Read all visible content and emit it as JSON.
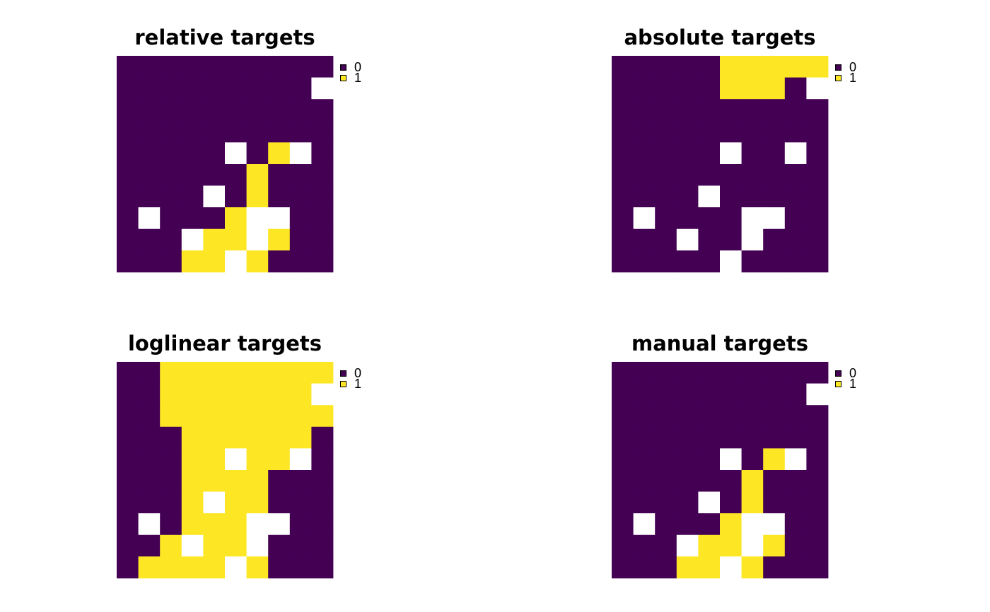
{
  "legend_levels": [
    "0",
    "1"
  ],
  "colors": {
    "0": "#440154",
    "1": "#FDE725",
    "na": "#FFFFFF"
  },
  "chart_data": [
    {
      "type": "heatmap",
      "title": "relative targets",
      "nrow": 10,
      "ncol": 10,
      "grid": [
        [
          0,
          0,
          0,
          0,
          0,
          0,
          0,
          0,
          0,
          0
        ],
        [
          0,
          0,
          0,
          0,
          0,
          0,
          0,
          0,
          0,
          null
        ],
        [
          0,
          0,
          0,
          0,
          0,
          0,
          0,
          0,
          0,
          0
        ],
        [
          0,
          0,
          0,
          0,
          0,
          0,
          0,
          0,
          0,
          0
        ],
        [
          0,
          0,
          0,
          0,
          0,
          null,
          0,
          1,
          null,
          0
        ],
        [
          0,
          0,
          0,
          0,
          0,
          0,
          1,
          0,
          0,
          0
        ],
        [
          0,
          0,
          0,
          0,
          null,
          0,
          1,
          0,
          0,
          0
        ],
        [
          0,
          null,
          0,
          0,
          0,
          1,
          null,
          null,
          0,
          0
        ],
        [
          0,
          0,
          0,
          null,
          1,
          1,
          null,
          1,
          0,
          0
        ],
        [
          0,
          0,
          0,
          1,
          1,
          null,
          1,
          0,
          0,
          0
        ]
      ],
      "legend": [
        "0",
        "1"
      ]
    },
    {
      "type": "heatmap",
      "title": "absolute targets",
      "nrow": 10,
      "ncol": 10,
      "grid": [
        [
          0,
          0,
          0,
          0,
          0,
          1,
          1,
          1,
          1,
          1
        ],
        [
          0,
          0,
          0,
          0,
          0,
          1,
          1,
          1,
          0,
          null
        ],
        [
          0,
          0,
          0,
          0,
          0,
          0,
          0,
          0,
          0,
          0
        ],
        [
          0,
          0,
          0,
          0,
          0,
          0,
          0,
          0,
          0,
          0
        ],
        [
          0,
          0,
          0,
          0,
          0,
          null,
          0,
          0,
          null,
          0
        ],
        [
          0,
          0,
          0,
          0,
          0,
          0,
          0,
          0,
          0,
          0
        ],
        [
          0,
          0,
          0,
          0,
          null,
          0,
          0,
          0,
          0,
          0
        ],
        [
          0,
          null,
          0,
          0,
          0,
          0,
          null,
          null,
          0,
          0
        ],
        [
          0,
          0,
          0,
          null,
          0,
          0,
          null,
          0,
          0,
          0
        ],
        [
          0,
          0,
          0,
          0,
          0,
          null,
          0,
          0,
          0,
          0
        ]
      ],
      "legend": [
        "0",
        "1"
      ]
    },
    {
      "type": "heatmap",
      "title": "loglinear targets",
      "nrow": 10,
      "ncol": 10,
      "grid": [
        [
          0,
          0,
          1,
          1,
          1,
          1,
          1,
          1,
          1,
          1
        ],
        [
          0,
          0,
          1,
          1,
          1,
          1,
          1,
          1,
          1,
          null
        ],
        [
          0,
          0,
          1,
          1,
          1,
          1,
          1,
          1,
          1,
          1
        ],
        [
          0,
          0,
          0,
          1,
          1,
          1,
          1,
          1,
          1,
          0
        ],
        [
          0,
          0,
          0,
          1,
          1,
          null,
          1,
          1,
          null,
          0
        ],
        [
          0,
          0,
          0,
          1,
          1,
          1,
          1,
          0,
          0,
          0
        ],
        [
          0,
          0,
          0,
          1,
          null,
          1,
          1,
          0,
          0,
          0
        ],
        [
          0,
          null,
          0,
          1,
          1,
          1,
          null,
          null,
          0,
          0
        ],
        [
          0,
          0,
          1,
          null,
          1,
          1,
          null,
          0,
          0,
          0
        ],
        [
          0,
          1,
          1,
          1,
          1,
          null,
          1,
          0,
          0,
          0
        ]
      ],
      "legend": [
        "0",
        "1"
      ]
    },
    {
      "type": "heatmap",
      "title": "manual targets",
      "nrow": 10,
      "ncol": 10,
      "grid": [
        [
          0,
          0,
          0,
          0,
          0,
          0,
          0,
          0,
          0,
          0
        ],
        [
          0,
          0,
          0,
          0,
          0,
          0,
          0,
          0,
          0,
          null
        ],
        [
          0,
          0,
          0,
          0,
          0,
          0,
          0,
          0,
          0,
          0
        ],
        [
          0,
          0,
          0,
          0,
          0,
          0,
          0,
          0,
          0,
          0
        ],
        [
          0,
          0,
          0,
          0,
          0,
          null,
          0,
          1,
          null,
          0
        ],
        [
          0,
          0,
          0,
          0,
          0,
          0,
          1,
          0,
          0,
          0
        ],
        [
          0,
          0,
          0,
          0,
          null,
          0,
          1,
          0,
          0,
          0
        ],
        [
          0,
          null,
          0,
          0,
          0,
          1,
          null,
          null,
          0,
          0
        ],
        [
          0,
          0,
          0,
          null,
          1,
          1,
          null,
          1,
          0,
          0
        ],
        [
          0,
          0,
          0,
          1,
          1,
          null,
          1,
          0,
          0,
          0
        ]
      ],
      "legend": [
        "0",
        "1"
      ]
    }
  ]
}
